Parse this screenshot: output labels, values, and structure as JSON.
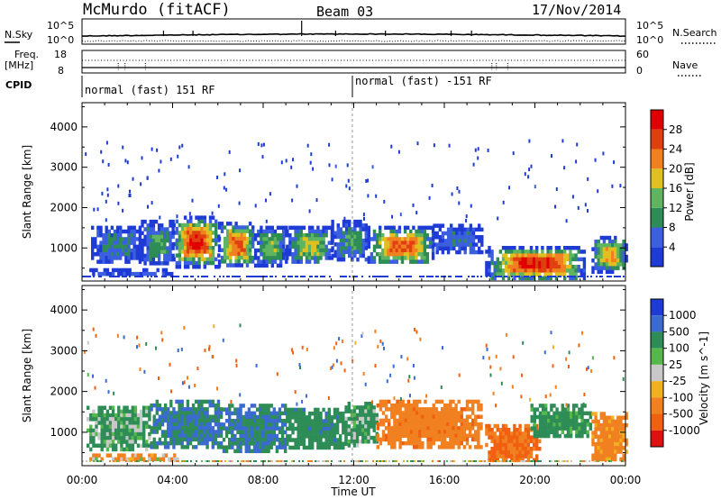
{
  "header": {
    "station": "McMurdo (fitACF)",
    "beam": "Beam 03",
    "date": "17/Nov/2014"
  },
  "top_panels": {
    "nsky": {
      "label": "N.Sky",
      "tick_top": "10^5",
      "tick_bottom": "10^0"
    },
    "nsearch": {
      "label": "N.Search",
      "tick_top": "10^5",
      "tick_bottom": "10^0"
    },
    "freq": {
      "label_line1": "Freq.",
      "label_line2": "[MHz]",
      "tick_top": "18",
      "tick_bottom": "8"
    },
    "nave": {
      "label": "Nave",
      "tick_top": "60",
      "tick_bottom": "0"
    },
    "cpid": {
      "label": "CPID",
      "mode1": "normal (fast) 151 RF",
      "mode2": "normal (fast) -151 RF"
    }
  },
  "chart_data": [
    {
      "type": "heatmap",
      "name": "power",
      "ylabel": "Slant Range [km]",
      "ylim": [
        180,
        4600
      ],
      "yticks": [
        "1000",
        "2000",
        "3000",
        "4000"
      ],
      "xlim": [
        0,
        24
      ],
      "colorbar": {
        "label": "Power [dB]",
        "levels": [
          "4",
          "8",
          "12",
          "16",
          "20",
          "24",
          "28"
        ],
        "colors": [
          "#1f3bd6",
          "#3b5fe0",
          "#2e8c57",
          "#5fb55f",
          "#e0c020",
          "#f08020",
          "#e04010",
          "#e00000"
        ]
      },
      "regions": [
        {
          "x0": 0.4,
          "x1": 2.6,
          "y0": 640,
          "y1": 1550,
          "peak": 9
        },
        {
          "x0": 2.6,
          "x1": 4.0,
          "y0": 620,
          "y1": 1700,
          "peak": 12
        },
        {
          "x0": 4.0,
          "x1": 6.0,
          "y0": 580,
          "y1": 1800,
          "peak": 28
        },
        {
          "x0": 6.0,
          "x1": 7.6,
          "y0": 560,
          "y1": 1650,
          "peak": 24
        },
        {
          "x0": 7.6,
          "x1": 9.0,
          "y0": 600,
          "y1": 1550,
          "peak": 14
        },
        {
          "x0": 9.0,
          "x1": 11.0,
          "y0": 620,
          "y1": 1550,
          "peak": 16
        },
        {
          "x0": 11.0,
          "x1": 12.6,
          "y0": 700,
          "y1": 1700,
          "peak": 10
        },
        {
          "x0": 12.6,
          "x1": 15.5,
          "y0": 620,
          "y1": 1550,
          "peak": 24
        },
        {
          "x0": 15.5,
          "x1": 17.6,
          "y0": 900,
          "y1": 1600,
          "peak": 8
        },
        {
          "x0": 17.8,
          "x1": 22.2,
          "y0": 240,
          "y1": 1050,
          "peak": 28
        },
        {
          "x0": 22.5,
          "x1": 24.0,
          "y0": 450,
          "y1": 1300,
          "peak": 20
        },
        {
          "x0": 0.2,
          "x1": 4.0,
          "y0": 380,
          "y1": 500,
          "peak": 6
        }
      ]
    },
    {
      "type": "heatmap",
      "name": "velocity",
      "xlabel": "Time UT",
      "ylabel": "Slant Range [km]",
      "ylim": [
        180,
        4600
      ],
      "yticks": [
        "1000",
        "2000",
        "3000",
        "4000"
      ],
      "xlim": [
        0,
        24
      ],
      "xticks": [
        "00:00",
        "04:00",
        "08:00",
        "12:00",
        "16:00",
        "20:00",
        "00:00"
      ],
      "colorbar": {
        "label": "Velocity [m s^-1]",
        "levels": [
          "1000",
          "500",
          "100",
          "25",
          "-25",
          "-100",
          "-500",
          "-1000"
        ],
        "colors": [
          "#1f3bd6",
          "#3b6ad0",
          "#2e8c57",
          "#56b84a",
          "#c8c8c8",
          "#f0b020",
          "#f08020",
          "#f06010",
          "#e01010"
        ]
      },
      "regions": [
        {
          "x0": 0.2,
          "x1": 3.0,
          "y0": 620,
          "y1": 1650,
          "vel": 100
        },
        {
          "x0": 3.0,
          "x1": 6.2,
          "y0": 600,
          "y1": 1800,
          "vel": 300
        },
        {
          "x0": 6.2,
          "x1": 9.0,
          "y0": 580,
          "y1": 1700,
          "vel": 300
        },
        {
          "x0": 9.0,
          "x1": 11.6,
          "y0": 640,
          "y1": 1600,
          "vel": 200
        },
        {
          "x0": 11.6,
          "x1": 13.0,
          "y0": 700,
          "y1": 1750,
          "vel": 100
        },
        {
          "x0": 13.0,
          "x1": 17.6,
          "y0": 650,
          "y1": 1800,
          "vel": -200
        },
        {
          "x0": 17.8,
          "x1": 20.2,
          "y0": 280,
          "y1": 1200,
          "vel": -300
        },
        {
          "x0": 19.8,
          "x1": 22.4,
          "y0": 900,
          "y1": 1700,
          "vel": 150
        },
        {
          "x0": 22.5,
          "x1": 24.0,
          "y0": 350,
          "y1": 1500,
          "vel": -150
        },
        {
          "x0": 0.2,
          "x1": 4.2,
          "y0": 380,
          "y1": 480,
          "vel": -80
        }
      ]
    }
  ]
}
